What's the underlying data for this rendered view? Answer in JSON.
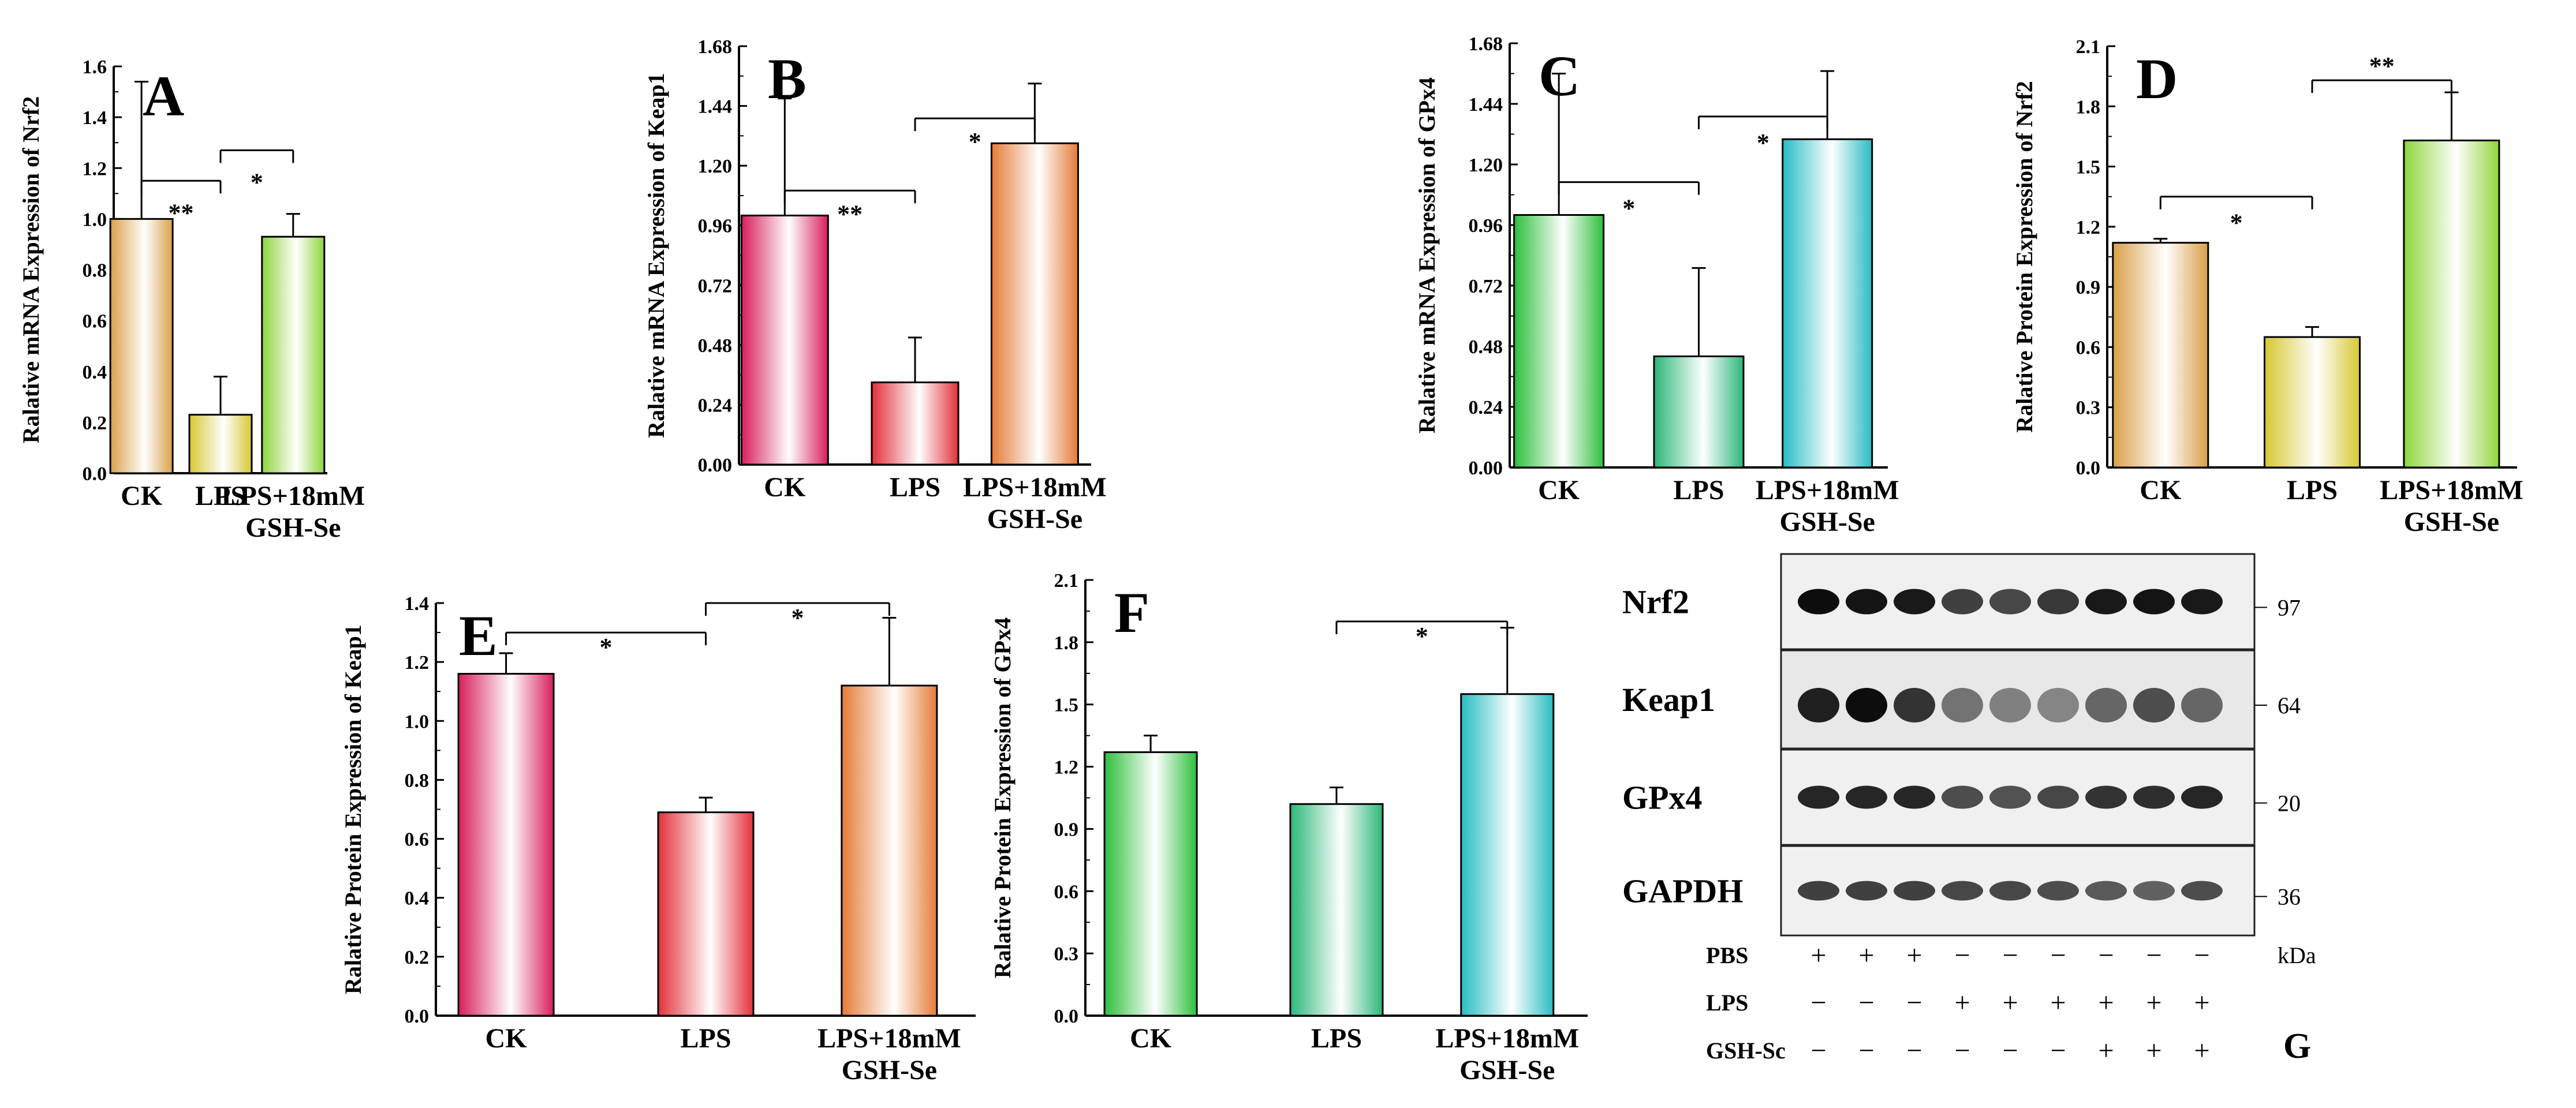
{
  "chart_data": [
    {
      "panel": "A",
      "type": "bar",
      "ylabel": "Ralative mRNA Expression of Nrf2",
      "categories": [
        "CK",
        "LPS",
        "LPS+18mM\nGSH-Se"
      ],
      "values": [
        1.0,
        0.23,
        0.93
      ],
      "errors": [
        0.54,
        0.15,
        0.09
      ],
      "ylim": [
        0,
        1.6
      ],
      "yticks": [
        "0.0",
        "0.2",
        "0.4",
        "0.6",
        "0.8",
        "1.0",
        "1.2",
        "1.4",
        "1.6"
      ],
      "colors": [
        "#d9a04a",
        "#d6c832",
        "#8fd43c"
      ],
      "significance": [
        {
          "from": 0,
          "to": 1,
          "label": "**"
        },
        {
          "from": 1,
          "to": 2,
          "label": "*"
        }
      ]
    },
    {
      "panel": "B",
      "type": "bar",
      "ylabel": "Ralative mRNA Expression of Keap1",
      "categories": [
        "CK",
        "LPS",
        "LPS+18mM\nGSH-Se"
      ],
      "values": [
        1.0,
        0.33,
        1.29
      ],
      "errors": [
        0.47,
        0.18,
        0.24
      ],
      "ylim": [
        0,
        1.68
      ],
      "yticks": [
        "0.00",
        "0.24",
        "0.48",
        "0.72",
        "0.96",
        "1.20",
        "1.44",
        "1.68"
      ],
      "colors": [
        "#d81e5b",
        "#e3303a",
        "#e57b38"
      ],
      "significance": [
        {
          "from": 0,
          "to": 1,
          "label": "**"
        },
        {
          "from": 1,
          "to": 2,
          "label": "*"
        }
      ]
    },
    {
      "panel": "C",
      "type": "bar",
      "ylabel": "Ralative mRNA Expression of GPx4",
      "categories": [
        "CK",
        "LPS",
        "LPS+18mM\nGSH-Se"
      ],
      "values": [
        1.0,
        0.44,
        1.3
      ],
      "errors": [
        0.56,
        0.35,
        0.27
      ],
      "ylim": [
        0,
        1.68
      ],
      "yticks": [
        "0.00",
        "0.24",
        "0.48",
        "0.72",
        "0.96",
        "1.20",
        "1.44",
        "1.68"
      ],
      "colors": [
        "#2dbf3c",
        "#2cb77a",
        "#27bcc2"
      ],
      "significance": [
        {
          "from": 0,
          "to": 1,
          "label": "*"
        },
        {
          "from": 1,
          "to": 2,
          "label": "*"
        }
      ]
    },
    {
      "panel": "D",
      "type": "bar",
      "ylabel": "Ralative Protein Expression of Nrf2",
      "categories": [
        "CK",
        "LPS",
        "LPS+18mM\nGSH-Se"
      ],
      "values": [
        1.12,
        0.65,
        1.63
      ],
      "errors": [
        0.02,
        0.05,
        0.24
      ],
      "ylim": [
        0,
        2.1
      ],
      "yticks": [
        "0.0",
        "0.3",
        "0.6",
        "0.9",
        "1.2",
        "1.5",
        "1.8",
        "2.1"
      ],
      "colors": [
        "#d9a04a",
        "#d6c832",
        "#8fd43c"
      ],
      "significance": [
        {
          "from": 0,
          "to": 1,
          "label": "*"
        },
        {
          "from": 1,
          "to": 2,
          "label": "**"
        }
      ]
    },
    {
      "panel": "E",
      "type": "bar",
      "ylabel": "Ralative Protein Expression of Keap1",
      "categories": [
        "CK",
        "LPS",
        "LPS+18mM\nGSH-Se"
      ],
      "values": [
        1.16,
        0.69,
        1.12
      ],
      "errors": [
        0.07,
        0.05,
        0.23
      ],
      "ylim": [
        0,
        1.4
      ],
      "yticks": [
        "0.0",
        "0.2",
        "0.4",
        "0.6",
        "0.8",
        "1.0",
        "1.2",
        "1.4"
      ],
      "colors": [
        "#d81e5b",
        "#e3303a",
        "#e57b38"
      ],
      "significance": [
        {
          "from": 0,
          "to": 1,
          "label": "*"
        },
        {
          "from": 1,
          "to": 2,
          "label": "*"
        }
      ]
    },
    {
      "panel": "F",
      "type": "bar",
      "ylabel": "Ralative Protein Expression of GPx4",
      "categories": [
        "CK",
        "LPS",
        "LPS+18mM\nGSH-Se"
      ],
      "values": [
        1.27,
        1.02,
        1.55
      ],
      "errors": [
        0.08,
        0.08,
        0.32
      ],
      "ylim": [
        0,
        2.1
      ],
      "yticks": [
        "0.0",
        "0.3",
        "0.6",
        "0.9",
        "1.2",
        "1.5",
        "1.8",
        "2.1"
      ],
      "colors": [
        "#2dbf3c",
        "#2cb77a",
        "#27bcc2"
      ],
      "significance": [
        {
          "from": 1,
          "to": 2,
          "label": "*"
        }
      ]
    }
  ],
  "blot": {
    "panel": "G",
    "proteins": [
      {
        "name": "Nrf2",
        "kda": "97"
      },
      {
        "name": "Keap1",
        "kda": "64"
      },
      {
        "name": "GPx4",
        "kda": "20"
      },
      {
        "name": "GAPDH",
        "kda": "36"
      }
    ],
    "unit_label": "kDa",
    "treatments": [
      {
        "name": "PBS",
        "signs": [
          "+",
          "+",
          "+",
          "−",
          "−",
          "−",
          "−",
          "−",
          "−"
        ]
      },
      {
        "name": "LPS",
        "signs": [
          "−",
          "−",
          "−",
          "+",
          "+",
          "+",
          "+",
          "+",
          "+"
        ]
      },
      {
        "name": "GSH-Sc",
        "signs": [
          "−",
          "−",
          "−",
          "−",
          "−",
          "−",
          "+",
          "+",
          "+"
        ]
      }
    ],
    "band_intensity": [
      [
        0.95,
        0.92,
        0.9,
        0.75,
        0.72,
        0.78,
        0.9,
        0.92,
        0.9
      ],
      [
        0.88,
        0.95,
        0.8,
        0.55,
        0.5,
        0.48,
        0.6,
        0.7,
        0.6
      ],
      [
        0.85,
        0.85,
        0.85,
        0.7,
        0.68,
        0.72,
        0.8,
        0.82,
        0.85
      ],
      [
        0.75,
        0.75,
        0.75,
        0.72,
        0.72,
        0.7,
        0.65,
        0.62,
        0.7
      ]
    ]
  }
}
